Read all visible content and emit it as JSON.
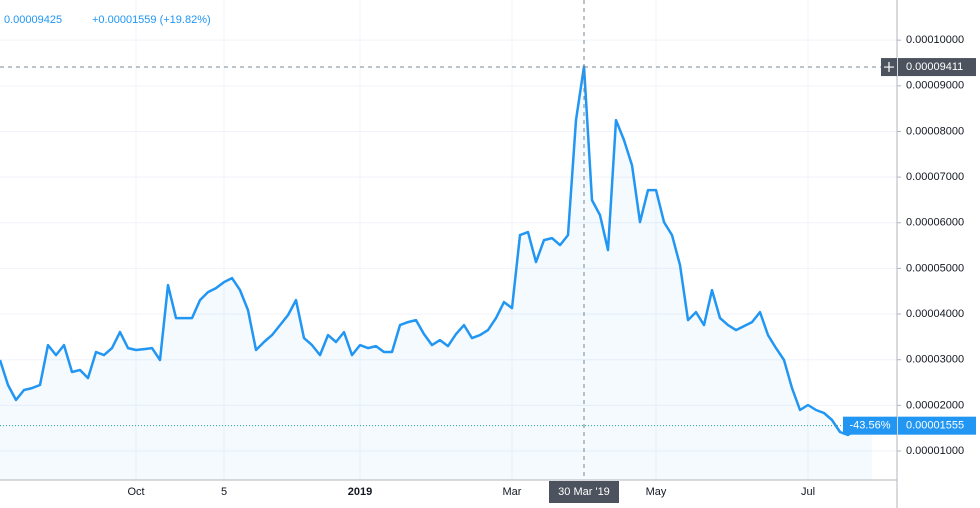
{
  "chart_data": {
    "type": "line",
    "header_price": "0.00009425",
    "header_change": "+0.00001559 (+19.82%)",
    "color": "#2196f3",
    "grid": true,
    "categories": [
      null,
      null,
      null,
      null,
      null,
      null,
      null,
      null,
      null,
      null,
      null,
      null,
      null,
      null,
      null,
      null,
      null,
      "Oct",
      null,
      null,
      null,
      null,
      null,
      null,
      null,
      null,
      null,
      null,
      "5",
      null,
      null,
      null,
      null,
      null,
      null,
      null,
      null,
      null,
      null,
      null,
      null,
      null,
      null,
      null,
      null,
      "2019",
      null,
      null,
      null,
      null,
      null,
      null,
      null,
      null,
      null,
      null,
      null,
      null,
      null,
      null,
      null,
      null,
      null,
      null,
      "Mar",
      null,
      null,
      null,
      null,
      null,
      null,
      null,
      null,
      "30 Mar '19",
      null,
      null,
      null,
      null,
      null,
      null,
      null,
      null,
      "May",
      null,
      null,
      null,
      null,
      null,
      null,
      null,
      null,
      null,
      null,
      null,
      null,
      null,
      null,
      null,
      null,
      null,
      null,
      "Jul",
      null,
      null,
      null,
      null,
      null,
      null,
      null,
      null
    ],
    "values": [
      2.993e-05,
      2.445e-05,
      2.117e-05,
      2.336e-05,
      2.379e-05,
      2.445e-05,
      3.321e-05,
      3.102e-05,
      3.321e-05,
      2.73e-05,
      2.774e-05,
      2.598e-05,
      3.168e-05,
      3.102e-05,
      3.255e-05,
      3.606e-05,
      3.255e-05,
      3.212e-05,
      3.233e-05,
      3.255e-05,
      2.993e-05,
      4.635e-05,
      3.912e-05,
      3.912e-05,
      3.912e-05,
      4.306e-05,
      4.482e-05,
      4.569e-05,
      4.7e-05,
      4.788e-05,
      4.525e-05,
      4.087e-05,
      3.212e-05,
      3.387e-05,
      3.54e-05,
      3.759e-05,
      3.978e-05,
      4.306e-05,
      3.474e-05,
      3.321e-05,
      3.102e-05,
      3.54e-05,
      3.387e-05,
      3.606e-05,
      3.102e-05,
      3.321e-05,
      3.255e-05,
      3.299e-05,
      3.168e-05,
      3.168e-05,
      3.759e-05,
      3.825e-05,
      3.868e-05,
      3.562e-05,
      3.321e-05,
      3.43e-05,
      3.299e-05,
      3.562e-05,
      3.759e-05,
      3.474e-05,
      3.54e-05,
      3.649e-05,
      3.912e-05,
      4.263e-05,
      4.131e-05,
      5.73e-05,
      5.795e-05,
      5.138e-05,
      5.62e-05,
      5.664e-05,
      5.511e-05,
      5.73e-05,
      8.248e-05,
      9.425e-05,
      6.496e-05,
      6.168e-05,
      5.401e-05,
      8.248e-05,
      7.81e-05,
      7.262e-05,
      6.014e-05,
      6.715e-05,
      6.715e-05,
      6.014e-05,
      5.73e-05,
      5.073e-05,
      3.868e-05,
      4.044e-05,
      3.759e-05,
      4.525e-05,
      3.912e-05,
      3.759e-05,
      3.649e-05,
      3.737e-05,
      3.825e-05,
      4.044e-05,
      3.54e-05,
      3.255e-05,
      2.993e-05,
      2.379e-05,
      1.898e-05,
      2.007e-05,
      1.898e-05,
      1.832e-05,
      1.679e-05,
      1.416e-05,
      1.35e-05,
      1.46e-05,
      1.504e-05,
      1.555e-05
    ],
    "ylim": [
      3.65e-06,
      0.0001088
    ],
    "yticks": [
      {
        "value": 1e-05,
        "label": "0.00001000"
      },
      {
        "value": 2e-05,
        "label": "0.00002000"
      },
      {
        "value": 3e-05,
        "label": "0.00003000"
      },
      {
        "value": 4e-05,
        "label": "0.00004000"
      },
      {
        "value": 5e-05,
        "label": "0.00005000"
      },
      {
        "value": 6e-05,
        "label": "0.00006000"
      },
      {
        "value": 7e-05,
        "label": "0.00007000"
      },
      {
        "value": 8e-05,
        "label": "0.00008000"
      },
      {
        "value": 9e-05,
        "label": "0.00009000"
      },
      {
        "value": 0.0001,
        "label": "0.00010000"
      }
    ],
    "crosshair": {
      "x": "30 Mar '19",
      "y": {
        "value": 9.411e-05,
        "label": "0.00009411"
      }
    },
    "last_price": {
      "value": 1.555e-05,
      "label": "0.00001555"
    },
    "last_change": "-43.56%"
  }
}
